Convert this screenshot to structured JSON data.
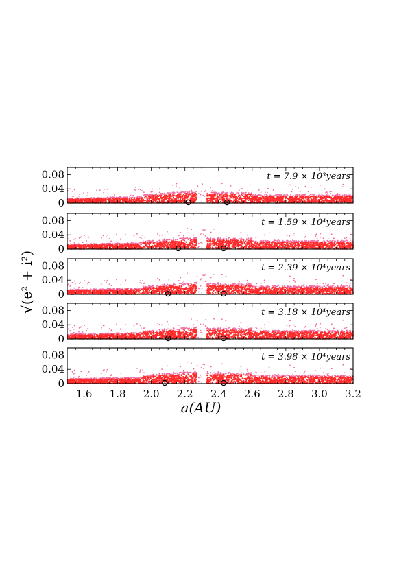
{
  "chart_data": {
    "type": "scatter",
    "xlabel": "a(AU)",
    "ylabel": "√(e² + i²)",
    "xlim": [
      1.5,
      3.2
    ],
    "ylim": [
      0,
      0.1
    ],
    "x_ticks": [
      "1.6",
      "1.8",
      "2.0",
      "2.2",
      "2.4",
      "2.6",
      "2.8",
      "3.0",
      "3.2"
    ],
    "y_ticks": [
      "0",
      "0.04",
      "0.08"
    ],
    "grid": false,
    "point_color": "#ff2a2a",
    "point_color_sparse": "#f06ca0",
    "marker_color": "#000000",
    "panels": [
      {
        "label": "t = 7.9 × 10³years",
        "gap": [
          2.27,
          2.33
        ],
        "hump": [
          2.0,
          2.27
        ],
        "markers": [
          2.22,
          2.45
        ]
      },
      {
        "label": "t = 1.59 × 10⁴years",
        "gap": [
          2.27,
          2.33
        ],
        "hump": [
          2.05,
          2.27
        ],
        "markers": [
          2.16,
          2.43
        ]
      },
      {
        "label": "t = 2.39 × 10⁴years",
        "gap": [
          2.27,
          2.33
        ],
        "hump": [
          2.03,
          2.27
        ],
        "markers": [
          2.1,
          2.43
        ]
      },
      {
        "label": "t = 3.18 × 10⁴years",
        "gap": [
          2.27,
          2.33
        ],
        "hump": [
          2.03,
          2.27
        ],
        "markers": [
          2.1,
          2.43
        ]
      },
      {
        "label": "t = 3.98 × 10⁴years",
        "gap": [
          2.27,
          2.33
        ],
        "hump": [
          2.0,
          2.27
        ],
        "markers": [
          2.08,
          2.43
        ]
      }
    ]
  }
}
